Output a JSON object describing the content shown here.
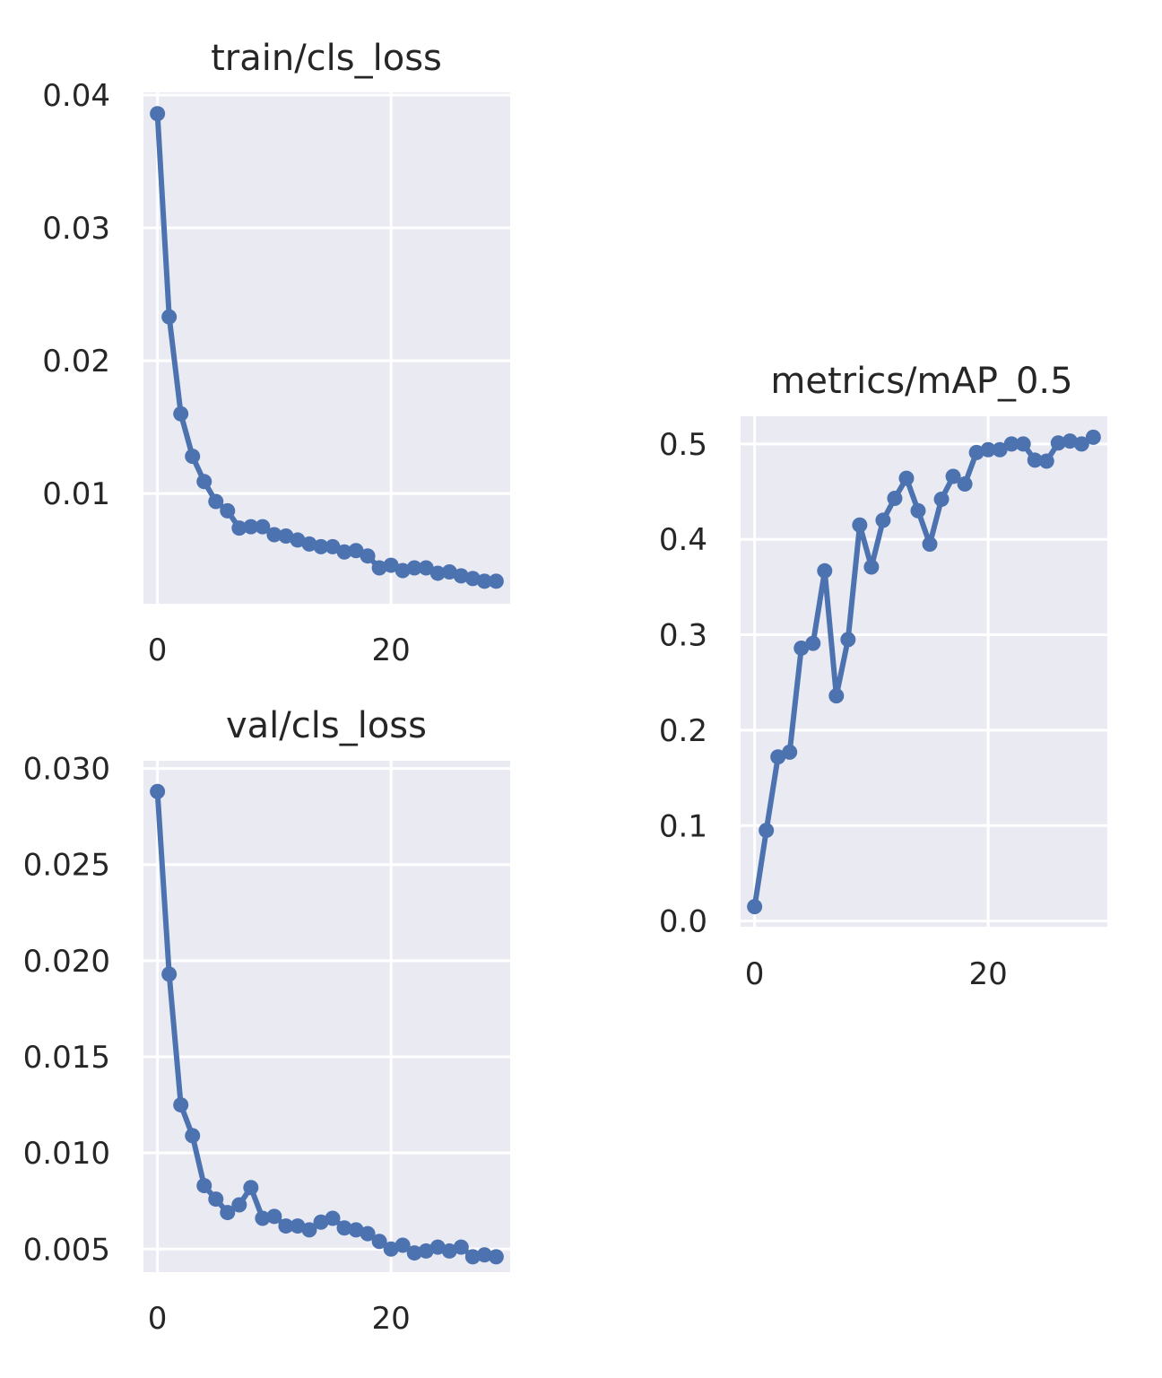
{
  "colors": {
    "panel_bg": "#eaeaf2",
    "grid": "#ffffff",
    "line": "#4c72b0",
    "text": "#262626"
  },
  "chart_data": [
    {
      "type": "line",
      "title": "train/cls_loss",
      "xlabel": "",
      "ylabel": "",
      "xlim": [
        -1.2,
        30.2
      ],
      "ylim": [
        0.0017,
        0.0402
      ],
      "xticks": [
        0,
        20
      ],
      "xtick_labels": [
        "0",
        "20"
      ],
      "yticks": [
        0.01,
        0.02,
        0.03,
        0.04
      ],
      "ytick_labels": [
        "0.01",
        "0.02",
        "0.03",
        "0.04"
      ],
      "grid": true,
      "x": [
        0,
        1,
        2,
        3,
        4,
        5,
        6,
        7,
        8,
        9,
        10,
        11,
        12,
        13,
        14,
        15,
        16,
        17,
        18,
        19,
        20,
        21,
        22,
        23,
        24,
        25,
        26,
        27,
        28,
        29
      ],
      "values": [
        0.0386,
        0.0233,
        0.016,
        0.0128,
        0.0109,
        0.0094,
        0.0087,
        0.0074,
        0.0075,
        0.0075,
        0.0069,
        0.0068,
        0.0065,
        0.0062,
        0.006,
        0.006,
        0.0056,
        0.0057,
        0.0053,
        0.0044,
        0.0046,
        0.0042,
        0.0044,
        0.0044,
        0.004,
        0.0041,
        0.0038,
        0.0036,
        0.0034,
        0.0034
      ]
    },
    {
      "type": "line",
      "title": "val/cls_loss",
      "xlabel": "",
      "ylabel": "",
      "xlim": [
        -1.2,
        30.2
      ],
      "ylim": [
        0.0038,
        0.0304
      ],
      "xticks": [
        0,
        20
      ],
      "xtick_labels": [
        "0",
        "20"
      ],
      "yticks": [
        0.005,
        0.01,
        0.015,
        0.02,
        0.025,
        0.03
      ],
      "ytick_labels": [
        "0.005",
        "0.010",
        "0.015",
        "0.020",
        "0.025",
        "0.030"
      ],
      "grid": true,
      "x": [
        0,
        1,
        2,
        3,
        4,
        5,
        6,
        7,
        8,
        9,
        10,
        11,
        12,
        13,
        14,
        15,
        16,
        17,
        18,
        19,
        20,
        21,
        22,
        23,
        24,
        25,
        26,
        27,
        28,
        29
      ],
      "values": [
        0.0288,
        0.0193,
        0.0125,
        0.0109,
        0.0083,
        0.0076,
        0.0069,
        0.0073,
        0.0082,
        0.0066,
        0.0067,
        0.0062,
        0.0062,
        0.006,
        0.0064,
        0.0066,
        0.0061,
        0.006,
        0.0058,
        0.0054,
        0.005,
        0.0052,
        0.0048,
        0.0049,
        0.0051,
        0.0049,
        0.0051,
        0.0046,
        0.0047,
        0.0046
      ]
    },
    {
      "type": "line",
      "title": "metrics/mAP_0.5",
      "xlabel": "",
      "ylabel": "",
      "xlim": [
        -1.2,
        30.2
      ],
      "ylim": [
        -0.006,
        0.529
      ],
      "xticks": [
        0,
        20
      ],
      "xtick_labels": [
        "0",
        "20"
      ],
      "yticks": [
        0.0,
        0.1,
        0.2,
        0.3,
        0.4,
        0.5
      ],
      "ytick_labels": [
        "0.0",
        "0.1",
        "0.2",
        "0.3",
        "0.4",
        "0.5"
      ],
      "grid": true,
      "x": [
        0,
        1,
        2,
        3,
        4,
        5,
        6,
        7,
        8,
        9,
        10,
        11,
        12,
        13,
        14,
        15,
        16,
        17,
        18,
        19,
        20,
        21,
        22,
        23,
        24,
        25,
        26,
        27,
        28,
        29
      ],
      "values": [
        0.015,
        0.095,
        0.172,
        0.177,
        0.286,
        0.291,
        0.367,
        0.236,
        0.295,
        0.415,
        0.371,
        0.42,
        0.443,
        0.464,
        0.43,
        0.395,
        0.442,
        0.466,
        0.458,
        0.491,
        0.494,
        0.494,
        0.5,
        0.5,
        0.483,
        0.482,
        0.501,
        0.503,
        0.5,
        0.507
      ]
    }
  ]
}
